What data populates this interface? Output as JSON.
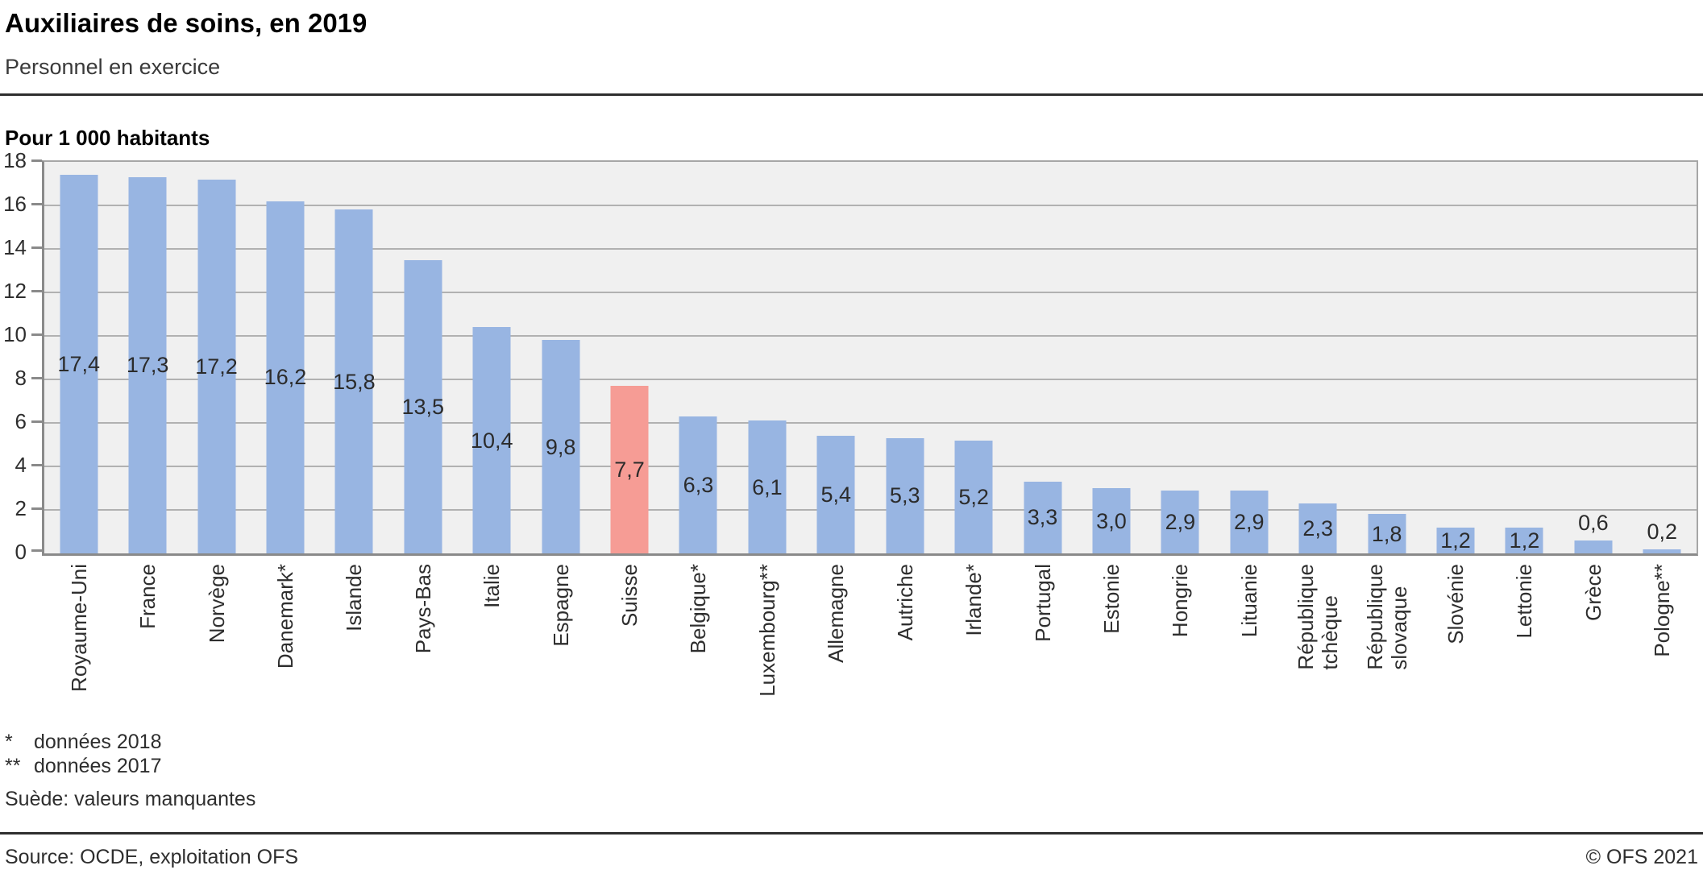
{
  "header": {
    "title": "Auxiliaires de soins, en 2019",
    "subtitle": "Personnel en exercice"
  },
  "chart_data": {
    "type": "bar",
    "title": "Auxiliaires de soins, en 2019",
    "subtitle": "Personnel en exercice",
    "unit_label": "Pour 1 000 habitants",
    "ylabel": "Pour 1 000 habitants",
    "xlabel": "",
    "ylim": [
      0,
      18
    ],
    "yticks": [
      0,
      2,
      4,
      6,
      8,
      10,
      12,
      14,
      16,
      18
    ],
    "grid": true,
    "categories": [
      "Royaume-Uni",
      "France",
      "Norvège",
      "Danemark*",
      "Islande",
      "Pays-Bas",
      "Italie",
      "Espagne",
      "Suisse",
      "Belgique*",
      "Luxembourg**",
      "Allemagne",
      "Autriche",
      "Irlande*",
      "Portugal",
      "Estonie",
      "Hongrie",
      "Lituanie",
      "République tchèque",
      "République slovaque",
      "Slovénie",
      "Lettonie",
      "Grèce",
      "Pologne**"
    ],
    "category_lines": [
      [
        "Royaume-Uni"
      ],
      [
        "France"
      ],
      [
        "Norvège"
      ],
      [
        "Danemark*"
      ],
      [
        "Islande"
      ],
      [
        "Pays-Bas"
      ],
      [
        "Italie"
      ],
      [
        "Espagne"
      ],
      [
        "Suisse"
      ],
      [
        "Belgique*"
      ],
      [
        "Luxembourg**"
      ],
      [
        "Allemagne"
      ],
      [
        "Autriche"
      ],
      [
        "Irlande*"
      ],
      [
        "Portugal"
      ],
      [
        "Estonie"
      ],
      [
        "Hongrie"
      ],
      [
        "Lituanie"
      ],
      [
        "République",
        "tchèque"
      ],
      [
        "République",
        "slovaque"
      ],
      [
        "Slovénie"
      ],
      [
        "Lettonie"
      ],
      [
        "Grèce"
      ],
      [
        "Pologne**"
      ]
    ],
    "values": [
      17.4,
      17.3,
      17.2,
      16.2,
      15.8,
      13.5,
      10.4,
      9.8,
      7.7,
      6.3,
      6.1,
      5.4,
      5.3,
      5.2,
      3.3,
      3.0,
      2.9,
      2.9,
      2.3,
      1.8,
      1.2,
      1.2,
      0.6,
      0.2
    ],
    "value_labels": [
      "17,4",
      "17,3",
      "17,2",
      "16,2",
      "15,8",
      "13,5",
      "10,4",
      "9,8",
      "7,7",
      "6,3",
      "6,1",
      "5,4",
      "5,3",
      "5,2",
      "3,3",
      "3,0",
      "2,9",
      "2,9",
      "2,3",
      "1,8",
      "1,2",
      "1,2",
      "0,6",
      "0,2"
    ],
    "highlight_index": 8,
    "highlight_category": "Suisse",
    "bar_color": "#98b5e2",
    "highlight_color": "#f69c95",
    "plot_background": "#f0f0f0",
    "grid_color": "#b1b1b1",
    "axis_color": "#8a8a8a",
    "legend_position": "none"
  },
  "footnotes": [
    {
      "marker": "*",
      "text": "données 2018"
    },
    {
      "marker": "**",
      "text": "données 2017"
    }
  ],
  "note": "Suède: valeurs manquantes",
  "footer": {
    "source": "Source: OCDE, exploitation OFS",
    "copyright": "© OFS 2021"
  }
}
